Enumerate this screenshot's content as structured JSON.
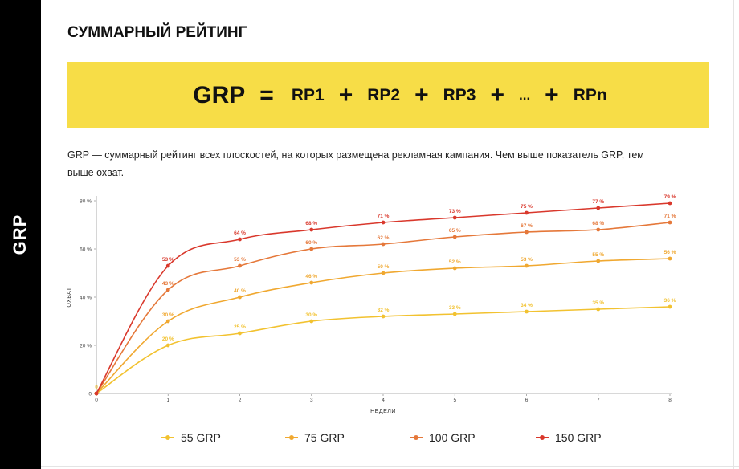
{
  "sidebar": {
    "label": "GRP"
  },
  "page": {
    "title": "СУММАРНЫЙ РЕЙТИНГ",
    "description": "GRP — суммарный рейтинг всех плоскостей, на которых размещена рекламная кампания. Чем выше показатель GRP, тем выше охват."
  },
  "formula": {
    "lhs": "GRP",
    "equals": "=",
    "terms": [
      "RP1",
      "RP2",
      "RP3",
      "...",
      "RPn"
    ],
    "operator": "+",
    "background_color": "#f7dd47"
  },
  "chart_data": {
    "type": "line",
    "xlabel": "НЕДЕЛИ",
    "ylabel": "ОХВАТ",
    "x": [
      0,
      1,
      2,
      3,
      4,
      5,
      6,
      7,
      8
    ],
    "x_tick_labels": [
      "0",
      "1",
      "2",
      "3",
      "4",
      "5",
      "6",
      "7",
      "8"
    ],
    "xlim": [
      0,
      8
    ],
    "ylim": [
      0,
      80
    ],
    "y_ticks": [
      0,
      20,
      40,
      60,
      80
    ],
    "y_tick_labels": [
      "0",
      "20 %",
      "40 %",
      "60 %",
      "80 %"
    ],
    "grid": false,
    "legend_position": "bottom",
    "series": [
      {
        "name": "55 GRP",
        "color": "#f2c230",
        "values": [
          0,
          20,
          25,
          30,
          32,
          33,
          34,
          35,
          36
        ],
        "labels": [
          "0",
          "20 %",
          "25 %",
          "30 %",
          "32 %",
          "33 %",
          "34 %",
          "35 %",
          "36 %"
        ]
      },
      {
        "name": "75 GRP",
        "color": "#f0a830",
        "values": [
          0,
          30,
          40,
          46,
          50,
          52,
          53,
          55,
          56
        ],
        "labels": [
          "",
          "30 %",
          "40 %",
          "46 %",
          "50 %",
          "52 %",
          "53 %",
          "55 %",
          "56 %"
        ]
      },
      {
        "name": "100 GRP",
        "color": "#e5783a",
        "values": [
          0,
          43,
          53,
          60,
          62,
          65,
          67,
          68,
          71
        ],
        "labels": [
          "",
          "43 %",
          "53 %",
          "60 %",
          "62 %",
          "65 %",
          "67 %",
          "68 %",
          "71 %"
        ]
      },
      {
        "name": "150 GRP",
        "color": "#d9382c",
        "values": [
          0,
          53,
          64,
          68,
          71,
          73,
          75,
          77,
          79
        ],
        "labels": [
          "",
          "53 %",
          "64 %",
          "68 %",
          "71 %",
          "73 %",
          "75 %",
          "77 %",
          "79 %"
        ]
      }
    ]
  }
}
